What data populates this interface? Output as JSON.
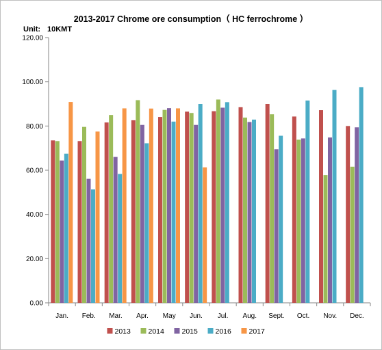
{
  "chart_data": {
    "type": "bar",
    "title": "2013-2017 Chrome ore consumption（ HC ferrochrome ）",
    "unit_label": "Unit:",
    "unit_value": "10KMT",
    "xlabel": "",
    "ylabel": "",
    "ylim": [
      0,
      120
    ],
    "yticks": [
      "0.00",
      "20.00",
      "40.00",
      "60.00",
      "80.00",
      "100.00",
      "120.00"
    ],
    "ytick_values": [
      0,
      20,
      40,
      60,
      80,
      100,
      120
    ],
    "grid": false,
    "legend_position": "bottom",
    "categories": [
      "Jan.",
      "Feb.",
      "Mar.",
      "Apr.",
      "May",
      "Jun.",
      "Jul.",
      "Aug.",
      "Sept.",
      "Oct.",
      "Nov.",
      "Dec."
    ],
    "series": [
      {
        "name": "2013",
        "color": "#C0504D",
        "values": [
          73.5,
          73.2,
          81.6,
          82.6,
          84.1,
          86.5,
          86.7,
          88.5,
          90.0,
          84.3,
          87.2,
          80.0
        ]
      },
      {
        "name": "2014",
        "color": "#9BBB59",
        "values": [
          73.2,
          79.6,
          85.0,
          91.7,
          87.3,
          85.9,
          92.0,
          83.8,
          85.3,
          73.8,
          57.8,
          61.6
        ]
      },
      {
        "name": "2015",
        "color": "#8064A2",
        "values": [
          64.4,
          56.1,
          66.0,
          80.5,
          88.1,
          80.5,
          88.3,
          81.8,
          69.5,
          74.4,
          74.8,
          79.4
        ]
      },
      {
        "name": "2016",
        "color": "#4BACC6",
        "values": [
          67.5,
          51.3,
          58.3,
          72.2,
          82.0,
          90.0,
          90.8,
          82.9,
          75.6,
          91.5,
          96.3,
          97.6
        ]
      },
      {
        "name": "2017",
        "color": "#F79646",
        "values": [
          90.9,
          77.5,
          88.0,
          87.9,
          88.0,
          61.3,
          null,
          null,
          null,
          null,
          null,
          null
        ]
      }
    ]
  }
}
